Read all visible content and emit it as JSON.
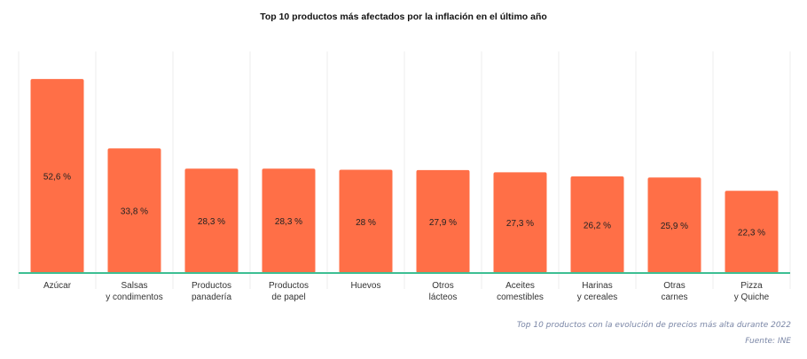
{
  "chart_data": {
    "type": "bar",
    "title": "Top 10 productos más afectados por la inflación en el último año",
    "categories": [
      [
        "Azúcar"
      ],
      [
        "Salsas",
        "y condimentos"
      ],
      [
        "Productos",
        "panadería"
      ],
      [
        "Productos",
        "de papel"
      ],
      [
        "Huevos"
      ],
      [
        "Otros",
        "lácteos"
      ],
      [
        "Aceites",
        "comestibles"
      ],
      [
        "Harinas",
        "y cereales"
      ],
      [
        "Otras",
        "carnes"
      ],
      [
        "Pizza",
        "y Quiche"
      ]
    ],
    "values": [
      52.6,
      33.8,
      28.3,
      28.3,
      28.0,
      27.9,
      27.3,
      26.2,
      25.9,
      22.3
    ],
    "value_labels": [
      "52,6 %",
      "33,8 %",
      "28,3 %",
      "28,3 %",
      "28 %",
      "27,9 %",
      "27,3 %",
      "26,2 %",
      "25,9 %",
      "22,3 %"
    ],
    "xlabel": "",
    "ylabel": "",
    "ylim": [
      0,
      60
    ],
    "grid": true,
    "colors": {
      "bar": "#ff6f47",
      "baseline": "#3dbf93",
      "grid": "#ececec"
    }
  },
  "captions": {
    "subtitle": "Top 10 productos con la evolución de precios más alta durante 2022",
    "source": "Fuente: INE"
  }
}
